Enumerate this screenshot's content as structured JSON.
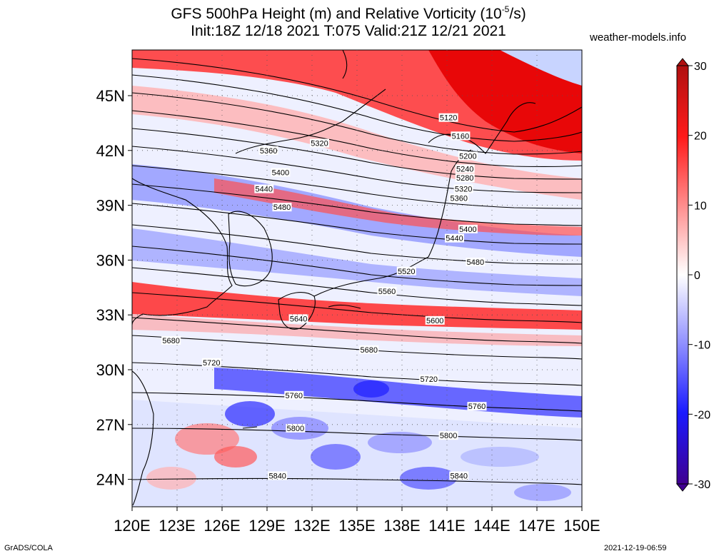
{
  "header": {
    "title_line1_prefix": "GFS 500hPa Height (m) and Relative Vorticity (10",
    "title_line1_exp": "-5",
    "title_line1_suffix": "/s)",
    "title_line2": "Init:18Z 12/18 2021 T:075 Valid:21Z 12/21 2021",
    "brand": "weather-models.info"
  },
  "footer": {
    "left": "GrADS/COLA",
    "right": "2021-12-19-06:59"
  },
  "colors": {
    "positive": "#ff0000",
    "negative": "#0000ff",
    "neutral": "#ffffff",
    "colorbar_top": "#b01010",
    "colorbar_bottom": "#400090"
  },
  "chart_data": {
    "type": "heatmap",
    "variables": [
      "500hPa geopotential height (m)",
      "relative vorticity (10^-5/s)"
    ],
    "lon_range": [
      120,
      150
    ],
    "lat_range": [
      22.5,
      47.5
    ],
    "x_ticks": [
      "120E",
      "123E",
      "126E",
      "129E",
      "132E",
      "135E",
      "138E",
      "141E",
      "144E",
      "147E",
      "150E"
    ],
    "y_ticks": [
      "24N",
      "27N",
      "30N",
      "33N",
      "36N",
      "39N",
      "42N",
      "45N"
    ],
    "colorbar": {
      "min": -30,
      "max": 30,
      "ticks": [
        "30",
        "20",
        "10",
        "0",
        "-10",
        "-20",
        "-30"
      ]
    },
    "contour_labels": [
      {
        "text": "5120",
        "lon": 141.1,
        "lat": 43.8
      },
      {
        "text": "5160",
        "lon": 141.9,
        "lat": 42.8
      },
      {
        "text": "5200",
        "lon": 142.4,
        "lat": 41.7
      },
      {
        "text": "5240",
        "lon": 142.2,
        "lat": 41.0
      },
      {
        "text": "5280",
        "lon": 142.2,
        "lat": 40.5
      },
      {
        "text": "5320",
        "lon": 142.1,
        "lat": 39.9
      },
      {
        "text": "5360",
        "lon": 141.8,
        "lat": 39.4
      },
      {
        "text": "5320",
        "lon": 132.5,
        "lat": 42.4
      },
      {
        "text": "5360",
        "lon": 129.1,
        "lat": 42.0
      },
      {
        "text": "5400",
        "lon": 129.9,
        "lat": 40.8
      },
      {
        "text": "5440",
        "lon": 128.8,
        "lat": 39.9
      },
      {
        "text": "5480",
        "lon": 130.0,
        "lat": 38.9
      },
      {
        "text": "5400",
        "lon": 142.4,
        "lat": 37.7
      },
      {
        "text": "5440",
        "lon": 141.5,
        "lat": 37.2
      },
      {
        "text": "5480",
        "lon": 142.9,
        "lat": 35.9
      },
      {
        "text": "5520",
        "lon": 138.3,
        "lat": 35.4
      },
      {
        "text": "5560",
        "lon": 137.0,
        "lat": 34.3
      },
      {
        "text": "5600",
        "lon": 140.2,
        "lat": 32.7
      },
      {
        "text": "5640",
        "lon": 131.1,
        "lat": 32.8
      },
      {
        "text": "5680",
        "lon": 122.6,
        "lat": 31.6
      },
      {
        "text": "5680",
        "lon": 135.8,
        "lat": 31.1
      },
      {
        "text": "5720",
        "lon": 125.3,
        "lat": 30.4
      },
      {
        "text": "5720",
        "lon": 139.8,
        "lat": 29.5
      },
      {
        "text": "5760",
        "lon": 130.8,
        "lat": 28.6
      },
      {
        "text": "5760",
        "lon": 143.0,
        "lat": 28.0
      },
      {
        "text": "5800",
        "lon": 130.9,
        "lat": 26.8
      },
      {
        "text": "5800",
        "lon": 141.1,
        "lat": 26.4
      },
      {
        "text": "5840",
        "lon": 129.7,
        "lat": 24.2
      },
      {
        "text": "5840",
        "lon": 141.8,
        "lat": 24.2
      }
    ]
  }
}
